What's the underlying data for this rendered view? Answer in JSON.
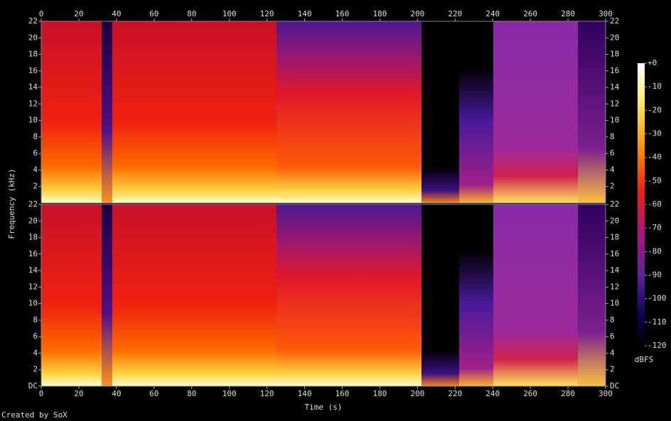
{
  "chart_data": [
    {
      "type": "spectrogram",
      "ylabel": "Frequency (kHz)",
      "xlim": [
        0,
        300
      ],
      "xticks": [
        0,
        20,
        40,
        60,
        80,
        100,
        120,
        140,
        160,
        180,
        200,
        220,
        240,
        260,
        280,
        300
      ],
      "ylim": [
        0,
        22
      ],
      "yticks": [
        2,
        4,
        6,
        8,
        10,
        12,
        14,
        16,
        18,
        20,
        22
      ]
    },
    {
      "type": "spectrogram",
      "xlabel": "Time (s)",
      "xlim": [
        0,
        300
      ],
      "xticks": [
        0,
        20,
        40,
        60,
        80,
        100,
        120,
        140,
        160,
        180,
        200,
        220,
        240,
        260,
        280,
        300
      ],
      "ylim": [
        0,
        22
      ],
      "yticks": [
        {
          "value": 0,
          "label": "DC"
        },
        2,
        4,
        6,
        8,
        10,
        12,
        14,
        16,
        18,
        20,
        22
      ]
    }
  ],
  "colorbar": {
    "label": "dBFS",
    "lim": [
      -120,
      0
    ],
    "ticks": [
      {
        "value": 0,
        "label": "+0"
      },
      -10,
      -20,
      -30,
      -40,
      -50,
      -60,
      -70,
      -80,
      -90,
      -100,
      -110,
      -120
    ]
  },
  "footer": "Created by SoX"
}
